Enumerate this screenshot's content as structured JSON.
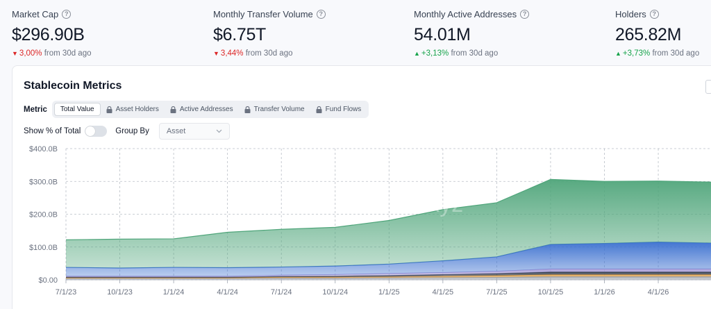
{
  "stats": [
    {
      "label": "Market Cap",
      "value": "$296.90B",
      "direction": "down",
      "change": "3,00%",
      "suffix": "from 30d ago"
    },
    {
      "label": "Monthly Transfer Volume",
      "value": "$6.75T",
      "direction": "down",
      "change": "3,44%",
      "suffix": "from 30d ago"
    },
    {
      "label": "Monthly Active Addresses",
      "value": "54.01M",
      "direction": "up",
      "change": "+3,13%",
      "suffix": "from 30d ago"
    },
    {
      "label": "Holders",
      "value": "265.82M",
      "direction": "up",
      "change": "+3,73%",
      "suffix": "from 30d ago"
    }
  ],
  "card": {
    "title": "Stablecoin Metrics",
    "metric_label": "Metric",
    "metric_tabs": [
      "Total Value",
      "Asset Holders",
      "Active Addresses",
      "Transfer Volume",
      "Fund Flows"
    ],
    "show_pct_label": "Show % of Total",
    "show_pct_on": false,
    "group_by_label": "Group By",
    "group_by_value": "Asset",
    "watermark": "rwa.xyz"
  },
  "colors": {
    "down": "#dc2626",
    "up": "#16a34a",
    "green": "#4fa57a",
    "blue": "#3a6fcf"
  },
  "chart_data": {
    "type": "area",
    "stacked": true,
    "x": [
      "7/1/23",
      "10/1/23",
      "1/1/24",
      "4/1/24",
      "7/1/24",
      "10/1/24",
      "1/1/25",
      "4/1/25",
      "7/1/25",
      "10/1/25",
      "1/1/26",
      "4/1/26",
      "6/30/26"
    ],
    "xticks": [
      "7/1/23",
      "10/1/23",
      "1/1/24",
      "4/1/24",
      "7/1/24",
      "10/1/24",
      "1/1/25",
      "4/1/25",
      "7/1/25",
      "10/1/25",
      "1/1/26",
      "4/1/26"
    ],
    "yticks": [
      "$0.00",
      "$100.0B",
      "$200.0B",
      "$300.0B",
      "$400.0B"
    ],
    "ylim": [
      0,
      400
    ],
    "grid": true,
    "series": [
      {
        "color": "#9aa0aa",
        "values": [
          4,
          4,
          4,
          4,
          5,
          5,
          6,
          7,
          8,
          10,
          10,
          10,
          10
        ]
      },
      {
        "color": "#e3a34b",
        "values": [
          2,
          2,
          2,
          2,
          3,
          3,
          3,
          4,
          5,
          6,
          6,
          6,
          6
        ]
      },
      {
        "color": "#2f3a4a",
        "values": [
          2,
          2,
          2,
          2,
          2,
          3,
          4,
          5,
          6,
          8,
          8,
          8,
          8
        ]
      },
      {
        "color": "#a69bd8",
        "values": [
          3,
          3,
          3,
          3,
          4,
          5,
          6,
          6,
          7,
          9,
          9,
          9,
          9
        ]
      },
      {
        "color": "#3a6fcf",
        "values": [
          27,
          25,
          27,
          26,
          25,
          26,
          29,
          36,
          44,
          75,
          78,
          82,
          79
        ]
      },
      {
        "color": "#4fa57a",
        "values": [
          84,
          88,
          87,
          108,
          115,
          118,
          133,
          156,
          165,
          198,
          189,
          186,
          186
        ]
      }
    ]
  }
}
